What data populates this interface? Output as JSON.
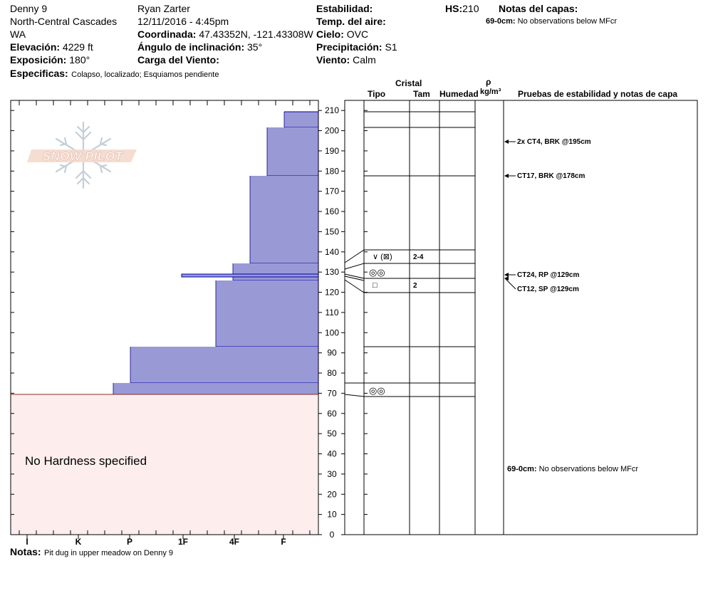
{
  "header": {
    "site": "Denny 9",
    "range": "North-Central Cascades",
    "state": "WA",
    "elevation_label": "Elevación:",
    "elevation_value": "4229 ft",
    "aspect_label": "Exposición:",
    "aspect_value": "180°",
    "specifics_label": "Especificas:",
    "specifics_value": "Colapso, localizado; Esquiamos pendiente",
    "observer": "Ryan Zarter",
    "datetime": "12/11/2016 - 4:45pm",
    "coord_label": "Coordinada:",
    "coord_value": "47.43352N, -121.43308W",
    "slope_label": "Ángulo de inclinación:",
    "slope_value": "35°",
    "wind_load_label": "Carga del Viento:",
    "stability_label": "Estabilidad:",
    "air_temp_label": "Temp. del aire:",
    "sky_label": "Cielo:",
    "sky_value": "OVC",
    "precip_label": "Precipitación:",
    "precip_value": "S1",
    "wind_label": "Viento:",
    "wind_value": "Calm",
    "hs_label": "HS:",
    "hs_value": "210",
    "layer_notes_title": "Notas del capas:",
    "layer_note_depth": "69-0cm:",
    "layer_note_text": "No observations below MFcr"
  },
  "logo": {
    "text": "SNOW PILOT"
  },
  "hardness_chart": {
    "no_hardness_text": "No Hardness specified",
    "x_ticks": [
      "I",
      "K",
      "P",
      "1F",
      "4F",
      "F"
    ],
    "y_ticks": [
      "210",
      "200",
      "190",
      "180",
      "170",
      "160",
      "150",
      "140",
      "130",
      "120",
      "110",
      "100",
      "90",
      "80",
      "70",
      "60",
      "50",
      "40",
      "30",
      "20",
      "10",
      "0"
    ]
  },
  "columns": {
    "crystal": "Cristal",
    "type": "Tipo",
    "size": "Tam",
    "moisture": "Humedad",
    "rho": "ρ",
    "density_unit": "kg/m³",
    "tests_header": "Pruebas de estabilidad y notas de capa"
  },
  "layers": [
    {
      "type_symbol": "∨ (⊠)",
      "size": "2-4"
    },
    {
      "type_symbol": "◎◎",
      "size": ""
    },
    {
      "type_symbol": "□",
      "size": "2"
    },
    {
      "type_symbol": "◎◎",
      "size": ""
    }
  ],
  "tests": [
    {
      "text": "2x CT4, BRK @195cm"
    },
    {
      "text": "CT17, BRK @178cm"
    },
    {
      "text": "CT24, RP @129cm"
    },
    {
      "text": "CT12, SP @129cm"
    }
  ],
  "right_note": {
    "depth": "69-0cm:",
    "text": "No observations below MFcr"
  },
  "notes": {
    "label": "Notas:",
    "text": "Pit dug in upper meadow on Denny 9"
  },
  "colors": {
    "layer_fill": "#9999d6",
    "layer_edge": "#0000aa",
    "no_hardness_fill": "#fdeeed",
    "ground_line": "#8b2a2a"
  }
}
